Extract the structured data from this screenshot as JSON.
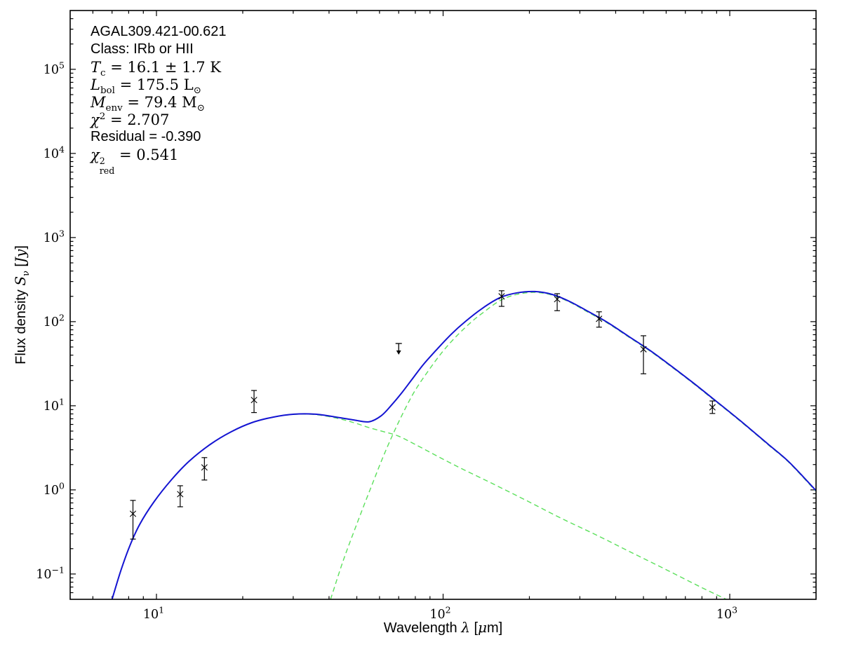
{
  "chart_data": {
    "type": "line",
    "title": "",
    "annotation_lines": [
      {
        "style": "sans",
        "tokens": "AGAL309.421-00.621"
      },
      {
        "style": "sans",
        "tokens": "Class: IRb or HII"
      },
      {
        "style": "math",
        "tokens": "*T*_c_ = 16.1 ± 1.7 K"
      },
      {
        "style": "math",
        "tokens": "*L*_bol_ = 175.5 L_⊙_"
      },
      {
        "style": "math",
        "tokens": "*M*_env_ = 79.4 M_⊙_"
      },
      {
        "style": "math",
        "tokens": "*χ*^2^ = 2.707"
      },
      {
        "style": "sans",
        "tokens": "Residual = -0.390"
      },
      {
        "style": "math",
        "tokens": "*χ*~2|red~ = 0.541"
      }
    ],
    "xlabel": "Wavelength λ [μm]",
    "xlabel_tokens": "Wavelength *λ* [*μ*m]",
    "ylabel": "Flux density Sν [Jy]",
    "ylabel_tokens": "Flux density *S*_ν_ [*Jy*]",
    "x_axis": {
      "scale": "log",
      "min": 5,
      "max": 2000,
      "major_ticks": [
        10,
        100,
        1000
      ],
      "grid": false
    },
    "y_axis": {
      "scale": "log",
      "min": 0.05,
      "max": 500000,
      "major_ticks": [
        0.1,
        1,
        10,
        100,
        1000,
        10000,
        100000
      ],
      "grid": false
    },
    "colors": {
      "model_total": "#1414d2",
      "model_components": "#5ce05c",
      "data_points": "#000000",
      "axes": "#000000"
    },
    "legend": "none",
    "series": [
      {
        "name": "total-model",
        "color": "#1414d2",
        "dash": "solid",
        "width": 2.0,
        "points": [
          [
            7.0,
            0.05
          ],
          [
            7.5,
            0.108
          ],
          [
            8.05,
            0.211
          ],
          [
            8.74,
            0.389
          ],
          [
            9.8,
            0.72
          ],
          [
            11.3,
            1.33
          ],
          [
            13.0,
            2.19
          ],
          [
            15.4,
            3.47
          ],
          [
            18.2,
            4.9
          ],
          [
            21.5,
            6.3
          ],
          [
            25.5,
            7.33
          ],
          [
            30.2,
            7.94
          ],
          [
            35.8,
            7.94
          ],
          [
            42.4,
            7.33
          ],
          [
            48.8,
            6.79
          ],
          [
            55.1,
            6.45
          ],
          [
            60.8,
            7.6
          ],
          [
            66.1,
            10.2
          ],
          [
            71.9,
            14.4
          ],
          [
            78.3,
            21.1
          ],
          [
            85.3,
            30.9
          ],
          [
            95.4,
            47.3
          ],
          [
            106.7,
            70.8
          ],
          [
            119.4,
            100
          ],
          [
            137,
            144
          ],
          [
            158,
            193
          ],
          [
            181,
            220
          ],
          [
            209,
            228
          ],
          [
            240,
            211
          ],
          [
            276,
            174
          ],
          [
            317,
            135
          ],
          [
            375,
            97.7
          ],
          [
            444,
            66.8
          ],
          [
            526,
            45.7
          ],
          [
            623,
            29.9
          ],
          [
            737,
            19.3
          ],
          [
            873,
            12.2
          ],
          [
            1091,
            6.6
          ],
          [
            1364,
            3.47
          ],
          [
            1611,
            2.14
          ],
          [
            2000,
            0.98
          ]
        ]
      },
      {
        "name": "cold-greybody-component",
        "color": "#5ce05c",
        "dash": "dashed",
        "width": 1.4,
        "points": [
          [
            40.5,
            0.05
          ],
          [
            44.7,
            0.14
          ],
          [
            50.1,
            0.4
          ],
          [
            56.2,
            1.1
          ],
          [
            63,
            2.9
          ],
          [
            70.7,
            6.9
          ],
          [
            79.2,
            14.5
          ],
          [
            88.8,
            26
          ],
          [
            99.6,
            44
          ],
          [
            111.7,
            68
          ],
          [
            125,
            98
          ],
          [
            137,
            126
          ],
          [
            158,
            178
          ],
          [
            181,
            211
          ],
          [
            209,
            223
          ],
          [
            240,
            207
          ],
          [
            276,
            171
          ],
          [
            317,
            132
          ],
          [
            375,
            95.8
          ],
          [
            444,
            65.6
          ],
          [
            526,
            44.9
          ],
          [
            623,
            29.4
          ],
          [
            737,
            19.0
          ],
          [
            873,
            12.0
          ],
          [
            1091,
            6.5
          ],
          [
            1364,
            3.42
          ],
          [
            1611,
            2.11
          ],
          [
            2000,
            0.96
          ]
        ]
      },
      {
        "name": "warm-component",
        "color": "#5ce05c",
        "dash": "dashed",
        "width": 1.4,
        "points": [
          [
            7.0,
            0.05
          ],
          [
            7.5,
            0.108
          ],
          [
            8.05,
            0.211
          ],
          [
            8.74,
            0.389
          ],
          [
            9.8,
            0.72
          ],
          [
            11.3,
            1.33
          ],
          [
            13.0,
            2.19
          ],
          [
            15.4,
            3.47
          ],
          [
            18.2,
            4.9
          ],
          [
            21.5,
            6.3
          ],
          [
            25.5,
            7.3
          ],
          [
            30.2,
            7.9
          ],
          [
            35.8,
            7.85
          ],
          [
            42.4,
            7.15
          ],
          [
            48.8,
            6.3
          ],
          [
            55.1,
            5.5
          ],
          [
            63,
            4.85
          ],
          [
            70,
            4.35
          ],
          [
            83.3,
            3.22
          ],
          [
            110,
            1.96
          ],
          [
            147,
            1.21
          ],
          [
            195,
            0.75
          ],
          [
            258,
            0.46
          ],
          [
            343,
            0.29
          ],
          [
            454,
            0.18
          ],
          [
            602,
            0.112
          ],
          [
            798,
            0.069
          ],
          [
            973,
            0.05
          ]
        ]
      }
    ],
    "data_points": [
      {
        "lambda_um": 8.28,
        "flux_jy": 0.52,
        "err_lo": 0.26,
        "err_hi": 0.75
      },
      {
        "lambda_um": 12.1,
        "flux_jy": 0.89,
        "err_lo": 0.63,
        "err_hi": 1.12
      },
      {
        "lambda_um": 14.7,
        "flux_jy": 1.85,
        "err_lo": 1.31,
        "err_hi": 2.42
      },
      {
        "lambda_um": 21.9,
        "flux_jy": 11.7,
        "err_lo": 8.3,
        "err_hi": 15.2
      },
      {
        "lambda_um": 160,
        "flux_jy": 200,
        "err_lo": 152,
        "err_hi": 233
      },
      {
        "lambda_um": 250,
        "flux_jy": 185,
        "err_lo": 135,
        "err_hi": 215
      },
      {
        "lambda_um": 350,
        "flux_jy": 108,
        "err_lo": 86,
        "err_hi": 131
      },
      {
        "lambda_um": 500,
        "flux_jy": 47,
        "err_lo": 24,
        "err_hi": 68
      },
      {
        "lambda_um": 870,
        "flux_jy": 9.6,
        "err_lo": 8.1,
        "err_hi": 11.4
      }
    ],
    "upper_limits": [
      {
        "lambda_um": 70,
        "flux_jy": 55
      }
    ]
  }
}
